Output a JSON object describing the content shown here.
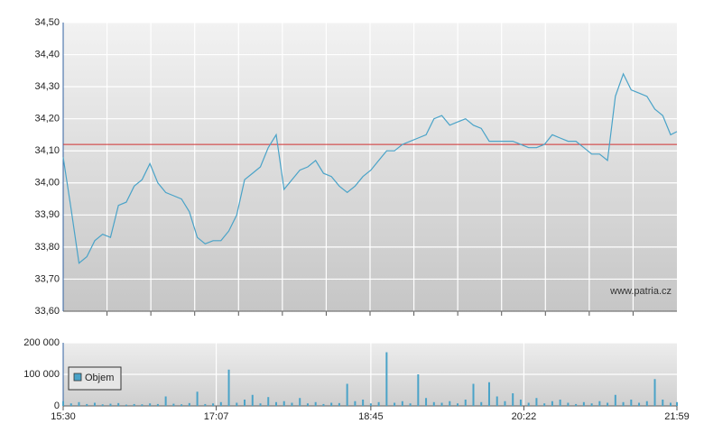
{
  "chart_data": [
    {
      "type": "line",
      "color": "#4aa3c8",
      "reference": 34.12,
      "reference_color": "#d03030",
      "annotation": "www.patria.cz",
      "xlim": [
        "15:30",
        "21:59"
      ],
      "ylim": [
        33.6,
        34.5
      ],
      "yticks": [
        {
          "value": 33.6,
          "label": "33,60"
        },
        {
          "value": 33.7,
          "label": "33,70"
        },
        {
          "value": 33.8,
          "label": "33,80"
        },
        {
          "value": 33.9,
          "label": "33,90"
        },
        {
          "value": 34.0,
          "label": "34,00"
        },
        {
          "value": 34.1,
          "label": "34,10"
        },
        {
          "value": 34.2,
          "label": "34,20"
        },
        {
          "value": 34.3,
          "label": "34,30"
        },
        {
          "value": 34.4,
          "label": "34,40"
        },
        {
          "value": 34.5,
          "label": "34,50"
        }
      ],
      "grid": true,
      "x": [
        "15:30",
        "15:35",
        "15:40",
        "15:45",
        "15:50",
        "15:55",
        "16:00",
        "16:05",
        "16:10",
        "16:15",
        "16:20",
        "16:25",
        "16:30",
        "16:35",
        "16:40",
        "16:45",
        "16:50",
        "16:55",
        "17:00",
        "17:05",
        "17:10",
        "17:15",
        "17:20",
        "17:25",
        "17:30",
        "17:35",
        "17:40",
        "17:45",
        "17:50",
        "17:55",
        "18:00",
        "18:05",
        "18:10",
        "18:15",
        "18:20",
        "18:25",
        "18:30",
        "18:35",
        "18:40",
        "18:45",
        "18:50",
        "18:55",
        "19:00",
        "19:05",
        "19:10",
        "19:15",
        "19:20",
        "19:25",
        "19:30",
        "19:35",
        "19:40",
        "19:45",
        "19:50",
        "19:55",
        "20:00",
        "20:05",
        "20:10",
        "20:15",
        "20:20",
        "20:25",
        "20:30",
        "20:35",
        "20:40",
        "20:45",
        "20:50",
        "20:55",
        "21:00",
        "21:05",
        "21:10",
        "21:15",
        "21:20",
        "21:25",
        "21:30",
        "21:35",
        "21:40",
        "21:45",
        "21:50",
        "21:55",
        "21:59"
      ],
      "values": [
        34.08,
        33.92,
        33.75,
        33.77,
        33.82,
        33.84,
        33.83,
        33.93,
        33.94,
        33.99,
        34.01,
        34.06,
        34.0,
        33.97,
        33.96,
        33.95,
        33.91,
        33.83,
        33.81,
        33.82,
        33.82,
        33.85,
        33.9,
        34.01,
        34.03,
        34.05,
        34.11,
        34.15,
        33.98,
        34.01,
        34.04,
        34.05,
        34.07,
        34.03,
        34.02,
        33.99,
        33.97,
        33.99,
        34.02,
        34.04,
        34.07,
        34.1,
        34.1,
        34.12,
        34.13,
        34.14,
        34.15,
        34.2,
        34.21,
        34.18,
        34.19,
        34.2,
        34.18,
        34.17,
        34.13,
        34.13,
        34.13,
        34.13,
        34.12,
        34.11,
        34.11,
        34.12,
        34.15,
        34.14,
        34.13,
        34.13,
        34.11,
        34.09,
        34.09,
        34.07,
        34.27,
        34.34,
        34.29,
        34.28,
        34.27,
        34.23,
        34.21,
        34.15,
        34.16
      ]
    },
    {
      "type": "bar",
      "xlim": [
        "15:30",
        "21:59"
      ],
      "xticks": [
        "15:30",
        "17:07",
        "18:45",
        "20:22",
        "21:59"
      ],
      "ylim": [
        0,
        200000
      ],
      "yticks": [
        0,
        {
          "value": 100000,
          "label": "100 000"
        },
        {
          "value": 200000,
          "label": "200 000"
        }
      ],
      "grid": true,
      "x": [
        "15:30",
        "15:35",
        "15:40",
        "15:45",
        "15:50",
        "15:55",
        "16:00",
        "16:05",
        "16:10",
        "16:15",
        "16:20",
        "16:25",
        "16:30",
        "16:35",
        "16:40",
        "16:45",
        "16:50",
        "16:55",
        "17:00",
        "17:05",
        "17:10",
        "17:15",
        "17:20",
        "17:25",
        "17:30",
        "17:35",
        "17:40",
        "17:45",
        "17:50",
        "17:55",
        "18:00",
        "18:05",
        "18:10",
        "18:15",
        "18:20",
        "18:25",
        "18:30",
        "18:35",
        "18:40",
        "18:45",
        "18:50",
        "18:55",
        "19:00",
        "19:05",
        "19:10",
        "19:15",
        "19:20",
        "19:25",
        "19:30",
        "19:35",
        "19:40",
        "19:45",
        "19:50",
        "19:55",
        "20:00",
        "20:05",
        "20:10",
        "20:15",
        "20:20",
        "20:25",
        "20:30",
        "20:35",
        "20:40",
        "20:45",
        "20:50",
        "20:55",
        "21:00",
        "21:05",
        "21:10",
        "21:15",
        "21:20",
        "21:25",
        "21:30",
        "21:35",
        "21:40",
        "21:45",
        "21:50",
        "21:55",
        "21:59"
      ],
      "series": [
        {
          "name": "Objem",
          "color": "#4aa3c8",
          "values": [
            15000,
            8000,
            12000,
            6000,
            10000,
            5000,
            7000,
            9000,
            4000,
            6000,
            5000,
            8000,
            6000,
            30000,
            7000,
            5000,
            9000,
            45000,
            6000,
            8000,
            12000,
            115000,
            10000,
            20000,
            35000,
            8000,
            28000,
            12000,
            15000,
            10000,
            25000,
            8000,
            12000,
            6000,
            10000,
            9000,
            70000,
            15000,
            20000,
            8000,
            12000,
            170000,
            10000,
            15000,
            8000,
            100000,
            25000,
            12000,
            10000,
            15000,
            8000,
            20000,
            70000,
            12000,
            75000,
            30000,
            15000,
            40000,
            20000,
            10000,
            25000,
            8000,
            15000,
            20000,
            10000,
            6000,
            12000,
            8000,
            15000,
            10000,
            35000,
            12000,
            20000,
            10000,
            15000,
            85000,
            20000,
            10000,
            12000
          ]
        }
      ]
    }
  ]
}
